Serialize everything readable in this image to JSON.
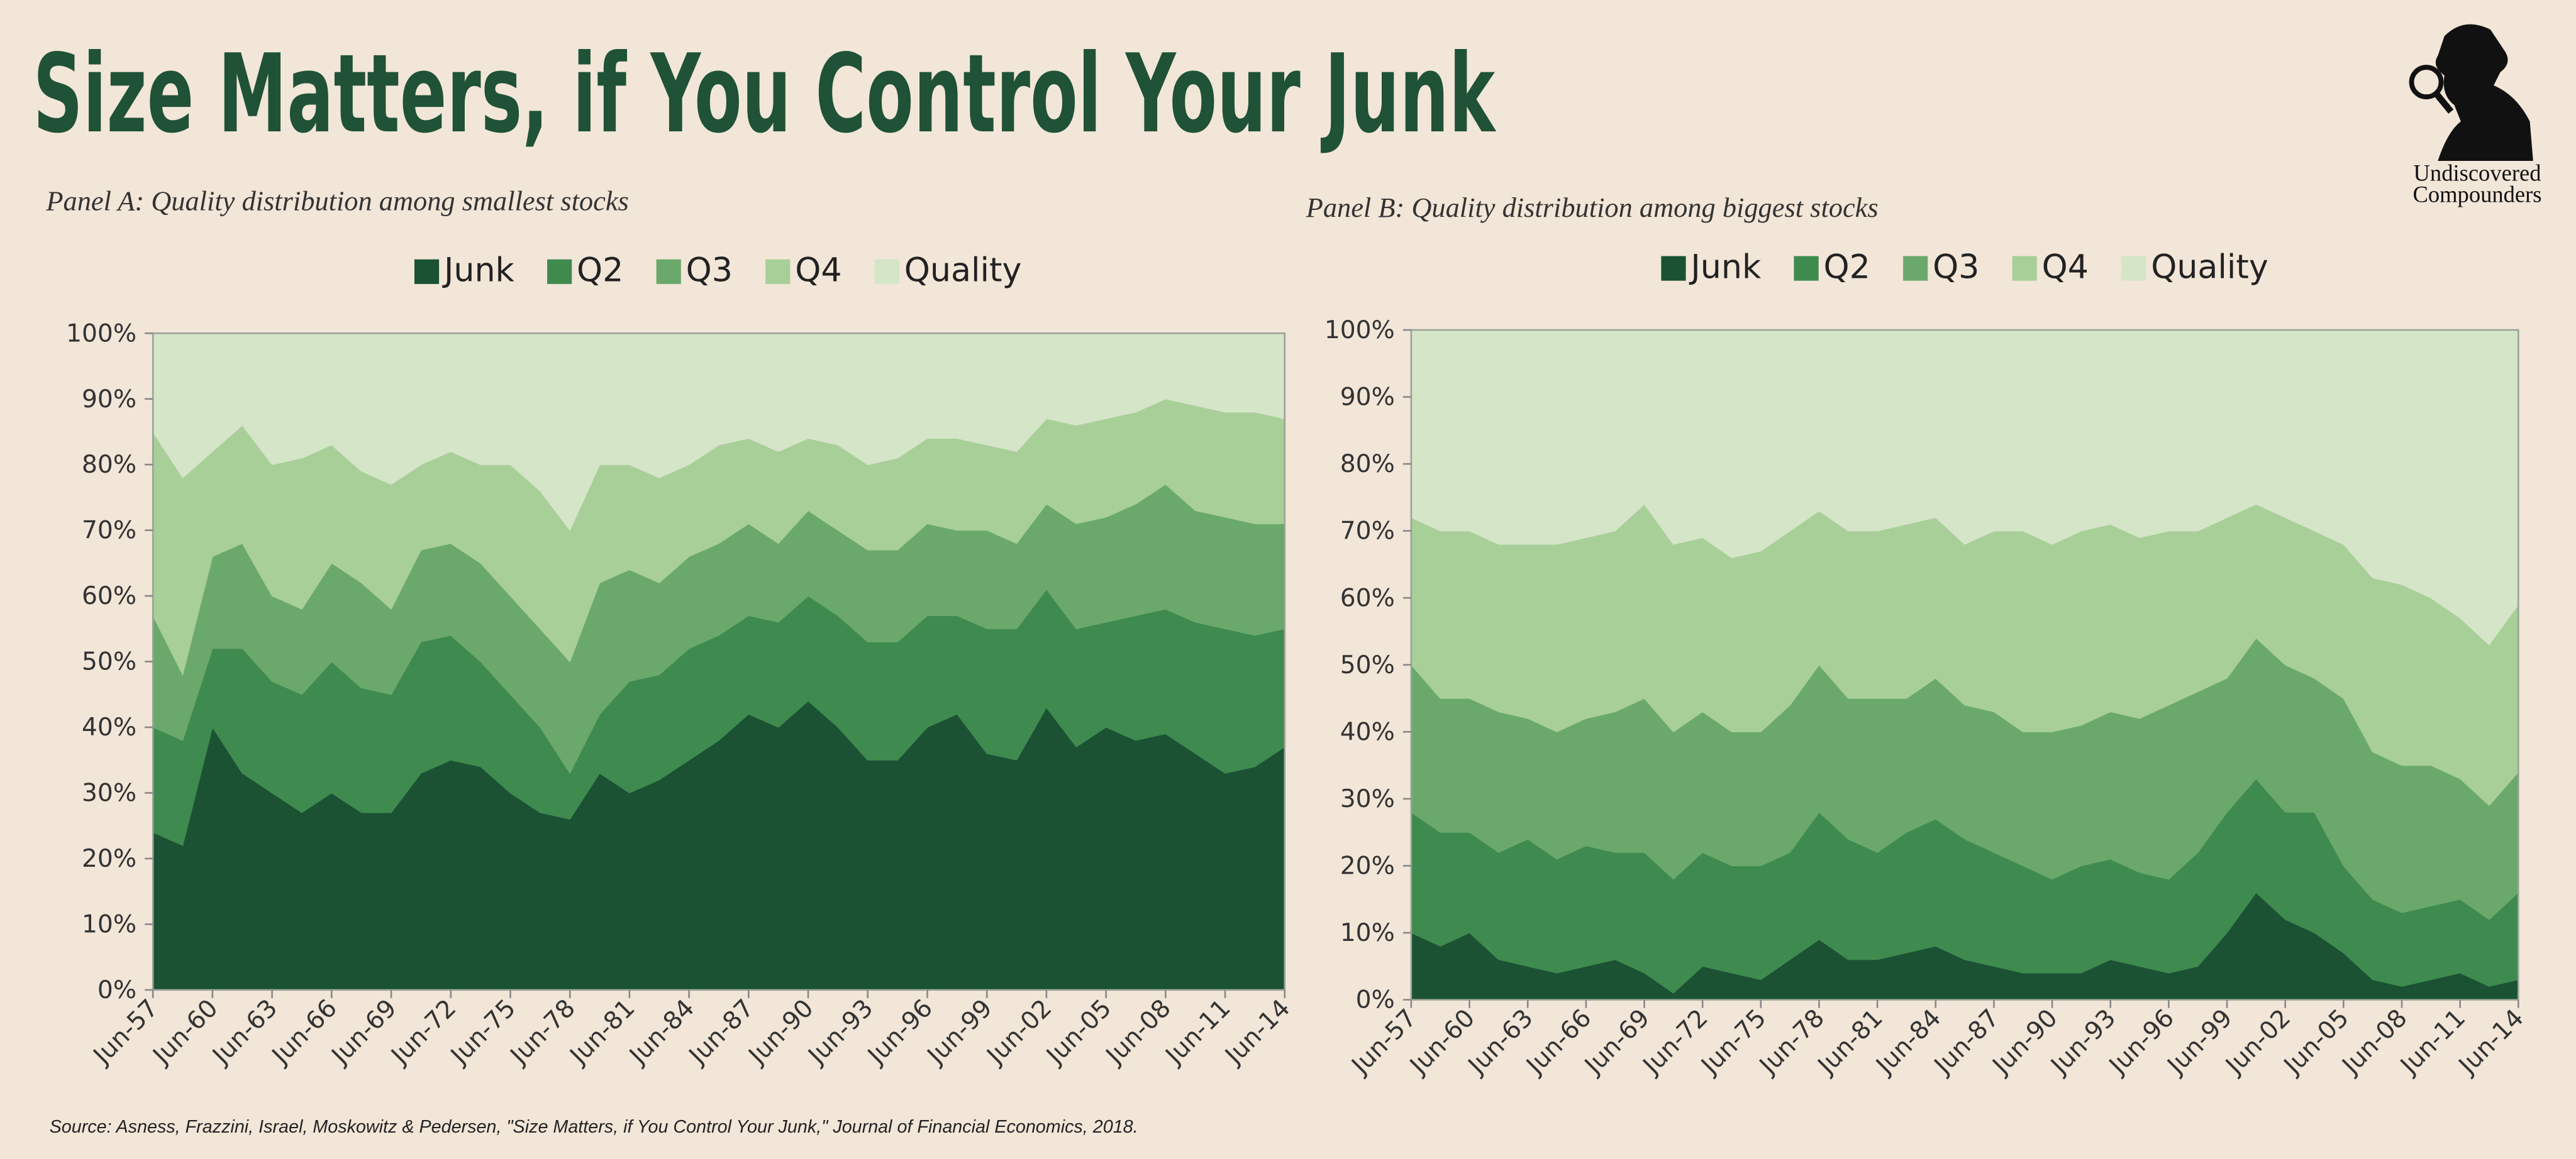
{
  "header": {
    "title": "Size Matters, if You Control Your Junk",
    "logo_text": [
      "Undiscovered",
      "Compounders"
    ]
  },
  "source": "Source: Asness, Frazzini, Israel, Moskowitz & Pedersen, \"Size Matters, if You Control Your Junk,\" Journal of Financial Economics, 2018.",
  "chart_data": [
    {
      "type": "stacked-area",
      "title": "Panel A: Quality distribution among smallest stocks",
      "categories": [
        "Jun-57",
        null,
        "Jun-60",
        null,
        "Jun-63",
        null,
        "Jun-66",
        null,
        "Jun-69",
        null,
        "Jun-72",
        null,
        "Jun-75",
        null,
        "Jun-78",
        null,
        "Jun-81",
        null,
        "Jun-84",
        null,
        "Jun-87",
        null,
        "Jun-90",
        null,
        "Jun-93",
        null,
        "Jun-96",
        null,
        "Jun-99",
        null,
        "Jun-02",
        null,
        "Jun-05",
        null,
        "Jun-08",
        null,
        "Jun-11",
        null,
        "Jun-14"
      ],
      "ylim": [
        0,
        100
      ],
      "yticks": [
        {
          "value": 0,
          "label": "0%"
        },
        {
          "value": 10,
          "label": "10%"
        },
        {
          "value": 20,
          "label": "20%"
        },
        {
          "value": 30,
          "label": "30%"
        },
        {
          "value": 40,
          "label": "40%"
        },
        {
          "value": 50,
          "label": "50%"
        },
        {
          "value": 60,
          "label": "60%"
        },
        {
          "value": 70,
          "label": "70%"
        },
        {
          "value": 80,
          "label": "80%"
        },
        {
          "value": 90,
          "label": "90%"
        },
        {
          "value": 100,
          "label": "100%"
        }
      ],
      "series": [
        {
          "name": "Junk",
          "color": "#1a5233",
          "values": [
            24,
            22,
            40,
            33,
            30,
            27,
            30,
            27,
            27,
            33,
            35,
            34,
            30,
            27,
            26,
            33,
            30,
            32,
            35,
            38,
            42,
            40,
            44,
            40,
            35,
            35,
            40,
            42,
            36,
            35,
            43,
            37,
            40,
            38,
            39,
            36,
            33,
            34,
            37
          ]
        },
        {
          "name": "Q2",
          "color": "#3f8a4f",
          "values": [
            16,
            16,
            12,
            19,
            17,
            18,
            20,
            19,
            18,
            20,
            19,
            16,
            15,
            13,
            7,
            9,
            17,
            16,
            17,
            16,
            15,
            16,
            16,
            17,
            18,
            18,
            17,
            15,
            19,
            20,
            18,
            18,
            16,
            19,
            19,
            20,
            22,
            20,
            18
          ]
        },
        {
          "name": "Q3",
          "color": "#6aa96b",
          "values": [
            17,
            10,
            14,
            16,
            13,
            13,
            15,
            16,
            13,
            14,
            14,
            15,
            15,
            15,
            17,
            20,
            17,
            14,
            14,
            14,
            14,
            12,
            13,
            13,
            14,
            14,
            14,
            13,
            15,
            13,
            13,
            16,
            16,
            17,
            19,
            17,
            17,
            17,
            16
          ]
        },
        {
          "name": "Q4",
          "color": "#a8cf98",
          "values": [
            28,
            30,
            16,
            18,
            20,
            23,
            18,
            17,
            19,
            13,
            14,
            15,
            20,
            21,
            20,
            18,
            16,
            16,
            14,
            15,
            13,
            14,
            11,
            13,
            13,
            14,
            13,
            14,
            13,
            14,
            13,
            15,
            15,
            14,
            13,
            16,
            16,
            17,
            16
          ]
        },
        {
          "name": "Quality",
          "color": "#d5e5c8",
          "values": [
            15,
            22,
            18,
            14,
            20,
            19,
            17,
            21,
            23,
            20,
            18,
            20,
            20,
            24,
            30,
            20,
            20,
            22,
            20,
            17,
            16,
            18,
            16,
            17,
            20,
            19,
            16,
            16,
            17,
            18,
            13,
            14,
            13,
            12,
            10,
            11,
            12,
            12,
            13
          ]
        }
      ]
    },
    {
      "type": "stacked-area",
      "title": "Panel B: Quality distribution among biggest stocks",
      "categories": [
        "Jun-57",
        null,
        "Jun-60",
        null,
        "Jun-63",
        null,
        "Jun-66",
        null,
        "Jun-69",
        null,
        "Jun-72",
        null,
        "Jun-75",
        null,
        "Jun-78",
        null,
        "Jun-81",
        null,
        "Jun-84",
        null,
        "Jun-87",
        null,
        "Jun-90",
        null,
        "Jun-93",
        null,
        "Jun-96",
        null,
        "Jun-99",
        null,
        "Jun-02",
        null,
        "Jun-05",
        null,
        "Jun-08",
        null,
        "Jun-11",
        null,
        "Jun-14"
      ],
      "ylim": [
        0,
        100
      ],
      "yticks": [
        {
          "value": 0,
          "label": "0%"
        },
        {
          "value": 10,
          "label": "10%"
        },
        {
          "value": 20,
          "label": "20%"
        },
        {
          "value": 30,
          "label": "30%"
        },
        {
          "value": 40,
          "label": "40%"
        },
        {
          "value": 50,
          "label": "50%"
        },
        {
          "value": 60,
          "label": "60%"
        },
        {
          "value": 70,
          "label": "70%"
        },
        {
          "value": 80,
          "label": "80%"
        },
        {
          "value": 90,
          "label": "90%"
        },
        {
          "value": 100,
          "label": "100%"
        }
      ],
      "series": [
        {
          "name": "Junk",
          "color": "#1a5233",
          "values": [
            10,
            8,
            10,
            6,
            5,
            4,
            5,
            6,
            4,
            1,
            5,
            4,
            3,
            6,
            9,
            6,
            6,
            7,
            8,
            6,
            5,
            4,
            4,
            4,
            6,
            5,
            4,
            5,
            10,
            16,
            12,
            10,
            7,
            3,
            2,
            3,
            4,
            2,
            3
          ]
        },
        {
          "name": "Q2",
          "color": "#3f8a4f",
          "values": [
            18,
            17,
            15,
            16,
            19,
            17,
            18,
            16,
            18,
            17,
            17,
            16,
            17,
            16,
            19,
            18,
            16,
            18,
            19,
            18,
            17,
            16,
            14,
            16,
            15,
            14,
            14,
            17,
            18,
            17,
            16,
            18,
            13,
            12,
            11,
            11,
            11,
            10,
            13
          ]
        },
        {
          "name": "Q3",
          "color": "#6aa96b",
          "values": [
            22,
            20,
            20,
            21,
            18,
            19,
            19,
            21,
            23,
            22,
            21,
            20,
            20,
            22,
            22,
            21,
            23,
            20,
            21,
            20,
            21,
            20,
            22,
            21,
            22,
            23,
            26,
            24,
            20,
            21,
            22,
            20,
            25,
            22,
            22,
            21,
            18,
            17,
            18
          ]
        },
        {
          "name": "Q4",
          "color": "#a8cf98",
          "values": [
            22,
            25,
            25,
            25,
            26,
            28,
            27,
            27,
            29,
            28,
            26,
            26,
            27,
            26,
            23,
            25,
            25,
            26,
            24,
            24,
            27,
            30,
            28,
            29,
            28,
            27,
            26,
            24,
            24,
            20,
            22,
            22,
            23,
            26,
            27,
            25,
            24,
            24,
            25
          ]
        },
        {
          "name": "Quality",
          "color": "#d5e5c8",
          "values": [
            28,
            30,
            30,
            32,
            32,
            32,
            31,
            30,
            26,
            32,
            31,
            34,
            33,
            30,
            27,
            30,
            30,
            29,
            28,
            32,
            30,
            30,
            32,
            30,
            29,
            31,
            30,
            30,
            28,
            26,
            28,
            30,
            32,
            37,
            38,
            40,
            43,
            47,
            41
          ]
        }
      ]
    }
  ]
}
